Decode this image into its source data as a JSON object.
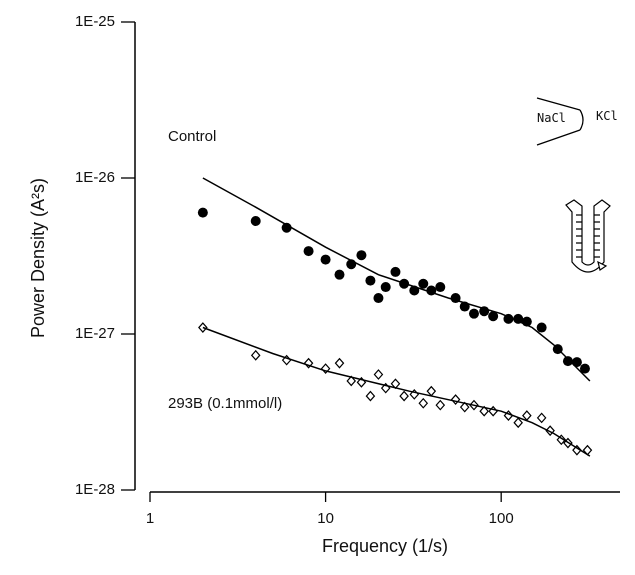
{
  "chart_data": {
    "type": "scatter",
    "xlabel": "Frequency (1/s)",
    "ylabel": "Power Density (A²s)",
    "log_x": true,
    "log_y": true,
    "xlim": [
      1,
      475
    ],
    "xticks": [
      1,
      10,
      100
    ],
    "ylim": [
      1e-28,
      1e-25
    ],
    "yticks": [
      {
        "value": 1e-28,
        "label": "1E-28"
      },
      {
        "value": 1e-27,
        "label": "1E-27"
      },
      {
        "value": 1e-26,
        "label": "1E-26"
      },
      {
        "value": 1e-25,
        "label": "1E-25"
      }
    ],
    "annotations": [
      "Control",
      "293B (0.1mmol/l)",
      "NaCl",
      "KCl"
    ],
    "series": [
      {
        "marker": "filled-circle",
        "color": "#000000",
        "x": [
          2,
          4,
          6,
          8,
          10,
          12,
          14,
          16,
          18,
          20,
          22,
          25,
          28,
          32,
          36,
          40,
          45,
          55,
          62,
          70,
          80,
          90,
          110,
          125,
          140,
          170,
          210,
          240,
          270,
          300
        ],
        "values": [
          6e-27,
          5.3e-27,
          4.8e-27,
          3.4e-27,
          3e-27,
          2.4e-27,
          2.8e-27,
          3.2e-27,
          2.2e-27,
          1.7e-27,
          2e-27,
          2.5e-27,
          2.1e-27,
          1.9e-27,
          2.1e-27,
          1.9e-27,
          2e-27,
          1.7e-27,
          1.5e-27,
          1.35e-27,
          1.4e-27,
          1.3e-27,
          1.25e-27,
          1.25e-27,
          1.2e-27,
          1.1e-27,
          8e-28,
          6.7e-28,
          6.6e-28,
          6e-28
        ]
      },
      {
        "marker": "open-diamond",
        "color": "#000000",
        "x": [
          2,
          4,
          6,
          8,
          10,
          12,
          14,
          16,
          18,
          20,
          22,
          25,
          28,
          32,
          36,
          40,
          45,
          55,
          62,
          70,
          80,
          90,
          110,
          125,
          140,
          170,
          190,
          220,
          240,
          270,
          310
        ],
        "values": [
          1.1e-27,
          7.3e-28,
          6.8e-28,
          6.5e-28,
          6e-28,
          6.5e-28,
          5e-28,
          4.9e-28,
          4e-28,
          5.5e-28,
          4.5e-28,
          4.8e-28,
          4e-28,
          4.1e-28,
          3.6e-28,
          4.3e-28,
          3.5e-28,
          3.8e-28,
          3.4e-28,
          3.5e-28,
          3.2e-28,
          3.2e-28,
          3e-28,
          2.7e-28,
          3e-28,
          2.9e-28,
          2.4e-28,
          2.1e-28,
          2e-28,
          1.8e-28,
          1.8e-28
        ]
      },
      {
        "marker": "line",
        "color": "#000000",
        "x": [
          2,
          4,
          10,
          20,
          50,
          100,
          150,
          200,
          320
        ],
        "values": [
          1e-26,
          6.5e-27,
          3.6e-27,
          2.4e-27,
          1.7e-27,
          1.35e-27,
          1.1e-27,
          8.5e-28,
          5e-28
        ]
      },
      {
        "marker": "line",
        "color": "#000000",
        "x": [
          2,
          5,
          10,
          30,
          100,
          150,
          200,
          320
        ],
        "values": [
          1.1e-27,
          7.5e-28,
          5.8e-28,
          4.3e-28,
          3.2e-28,
          2.7e-28,
          2.3e-28,
          1.65e-28
        ]
      }
    ]
  }
}
